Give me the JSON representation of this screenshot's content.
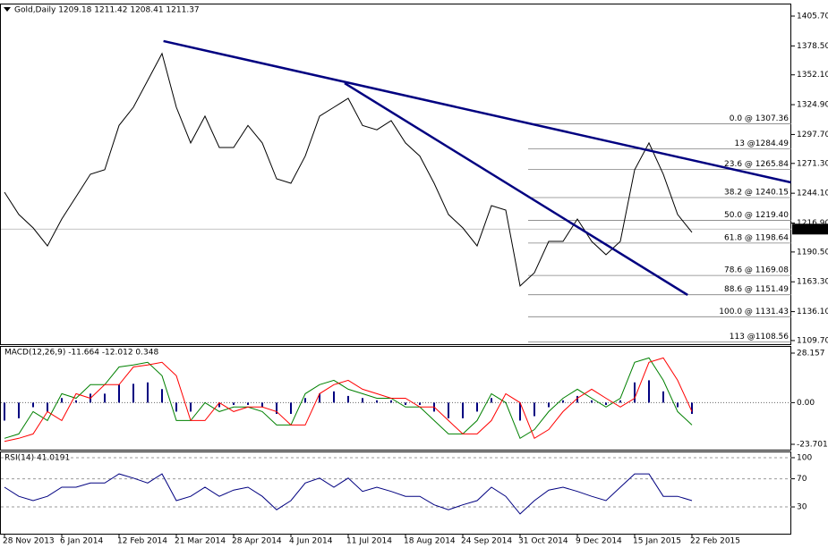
{
  "chart_data": [
    {
      "type": "line",
      "title": "Gold,Daily  1209.18 1211.42 1208.41 1211.37",
      "categories": [
        "28 Nov 2013",
        null,
        null,
        null,
        "6 Jan 2014",
        null,
        null,
        null,
        "12 Feb 2014",
        null,
        null,
        null,
        "21 Mar 2014",
        null,
        null,
        null,
        "28 Apr 2014",
        null,
        null,
        null,
        "4 Jun 2014",
        null,
        null,
        null,
        "11 Jul 2014",
        null,
        null,
        null,
        "18 Aug 2014",
        null,
        null,
        null,
        "24 Sep 2014",
        null,
        null,
        null,
        "31 Oct 2014",
        null,
        null,
        null,
        "9 Dec 2014",
        null,
        null,
        null,
        "15 Jan 2015",
        null,
        null,
        null,
        "22 Feb 2015"
      ],
      "series": [
        {
          "color": "#000000",
          "values": [
            1245,
            1224.7,
            1212.5,
            1196,
            1220.6,
            1241,
            1261.4,
            1265.5,
            1306,
            1322.5,
            1347,
            1371.5,
            1322.5,
            1290,
            1314.4,
            1285.8,
            1285.8,
            1306,
            1290,
            1257.3,
            1253.2,
            1278,
            1314.4,
            1322.5,
            1330.7,
            1306,
            1302,
            1310.3,
            1290,
            1278,
            1253.2,
            1224.7,
            1212.5,
            1196,
            1232.8,
            1228.7,
            1159.5,
            1171.6,
            1200.2,
            1200.2,
            1220.6,
            1200.2,
            1188,
            1200.2,
            1265.5,
            1290,
            1261.4,
            1224.7,
            1208.4
          ]
        }
      ],
      "ylim": [
        1106.4,
        1416.3
      ],
      "yticks": [
        {
          "value": 1405.7,
          "label": "1405.70"
        },
        {
          "value": 1378.5,
          "label": "1378.50"
        },
        {
          "value": 1352.1,
          "label": "1352.10"
        },
        {
          "value": 1324.9,
          "label": "1324.90"
        },
        {
          "value": 1297.7,
          "label": "1297.70"
        },
        {
          "value": 1271.3,
          "label": "1271.30"
        },
        {
          "value": 1244.1,
          "label": "1244.10"
        },
        {
          "value": 1216.9,
          "label": "1216.90"
        },
        {
          "value": 1190.5,
          "label": "1190.50"
        },
        {
          "value": 1163.3,
          "label": "1163.30"
        },
        {
          "value": 1136.1,
          "label": "1136.10"
        },
        {
          "value": 1109.7,
          "label": "1109.70"
        }
      ],
      "last_price": 1211.37,
      "fibonacci": {
        "color": "#808080",
        "values": [
          1307.36,
          1284.49,
          1265.84,
          1240.15,
          1219.4,
          1198.64,
          1169.08,
          1151.49,
          1131.43,
          1108.56
        ],
        "value_labels": [
          "0.0 @ 1307.36",
          "13 @1284.49",
          "23.6 @ 1265.84",
          "38.2 @ 1240.15",
          "50.0 @ 1219.40",
          "61.8 @ 1198.64",
          "78.6 @ 1169.08",
          "88.6 @ 1151.49",
          "100.0 @ 1131.43",
          "113 @1108.56"
        ]
      },
      "trendlines": [
        {
          "color": "#000080",
          "x": [
            11.1,
            54.9
          ],
          "y": [
            1382.9,
            1254
          ]
        },
        {
          "color": "#000080",
          "x": [
            23.75,
            47.7
          ],
          "y": [
            1344.5,
            1151.3
          ]
        }
      ]
    },
    {
      "type": "macd",
      "title": "MACD(12,26,9) -11.664 -12.012 0.348",
      "histogram": {
        "color": "#000080",
        "values": [
          -10.2,
          -8.9,
          -2.6,
          -5.1,
          2.6,
          1.3,
          5.1,
          5.1,
          10.2,
          10.7,
          11.5,
          7.7,
          -5.1,
          -5.1,
          0,
          -2.6,
          -1.3,
          -1.3,
          -2.6,
          -6.4,
          -6.4,
          2.6,
          5.1,
          6.4,
          3.8,
          2.6,
          1.3,
          1.3,
          -1.3,
          -1.3,
          -5.1,
          -8.9,
          -8.9,
          -5.1,
          2.6,
          0,
          -10.2,
          -7.7,
          -2.6,
          1.3,
          3.8,
          1.3,
          -1.3,
          1.3,
          11.5,
          12.7,
          6.4,
          -2.6,
          -6.4
        ]
      },
      "series": [
        {
          "color": "#008000",
          "values": [
            -20.3,
            -17.8,
            -5.1,
            -10.2,
            5.1,
            2.5,
            10.2,
            10.2,
            20.3,
            21.4,
            22.9,
            15.3,
            -10.2,
            -10.2,
            0,
            -5.1,
            -2.5,
            -2.5,
            -5.1,
            -12.7,
            -12.7,
            5.1,
            10.2,
            12.7,
            7.6,
            5.1,
            2.5,
            2.5,
            -2.5,
            -2.5,
            -10.2,
            -17.8,
            -17.8,
            -10.2,
            5.1,
            0,
            -20.3,
            -15.3,
            -5.1,
            2.5,
            7.6,
            2.5,
            -2.5,
            2.5,
            22.9,
            25.4,
            12.7,
            -5.1,
            -12.7
          ]
        },
        {
          "color": "#ff0000",
          "values": [
            -22,
            -20.3,
            -17.8,
            -5.1,
            -10.2,
            5.1,
            2.5,
            10.2,
            10.2,
            20.3,
            21.4,
            22.9,
            15.3,
            -10.2,
            -10.2,
            0,
            -5.1,
            -2.5,
            -2.5,
            -5.1,
            -12.7,
            -12.7,
            5.1,
            10.2,
            12.7,
            7.6,
            5.1,
            2.5,
            2.5,
            -2.5,
            -2.5,
            -10.2,
            -17.8,
            -17.8,
            -10.2,
            5.1,
            0,
            -20.3,
            -15.3,
            -5.1,
            2.5,
            7.6,
            2.5,
            -2.5,
            2.5,
            22.9,
            25.4,
            12.7,
            -5.1
          ]
        }
      ],
      "ylim": [
        -26.75,
        31.72
      ],
      "yticks": [
        28.157,
        {
          "value": 0,
          "label": "0.00"
        },
        -23.701
      ]
    },
    {
      "type": "line",
      "title": "RSI(14) 41.0191",
      "series": [
        {
          "color": "#000080",
          "values": [
            58,
            45,
            39,
            45,
            58,
            58,
            64,
            64,
            77,
            71,
            64,
            77,
            39,
            45,
            58,
            45,
            54,
            58,
            45,
            26,
            39,
            64,
            71,
            58,
            71,
            52,
            58,
            52,
            45,
            45,
            33,
            26,
            33,
            39,
            58,
            45,
            20,
            39,
            54,
            58,
            52,
            45,
            39,
            58,
            77,
            77,
            45,
            45,
            39
          ]
        }
      ],
      "ylim": [
        -8.1,
        107.6
      ],
      "yticks": [
        100,
        70,
        30
      ],
      "grid": true
    }
  ]
}
